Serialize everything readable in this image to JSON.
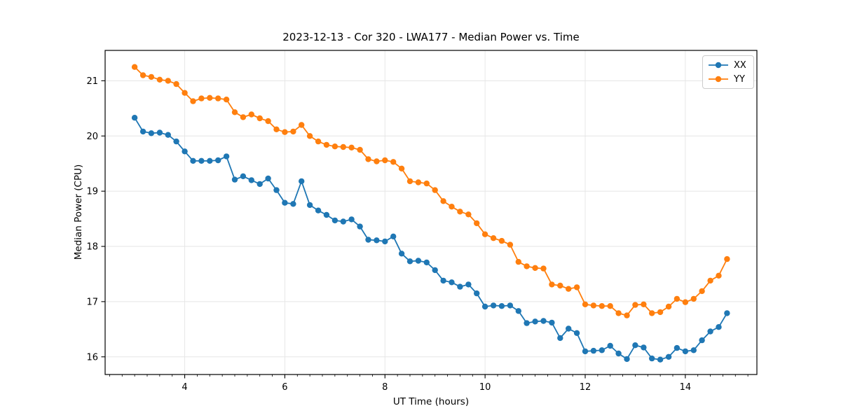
{
  "figure": {
    "background": "#ffffff"
  },
  "chart_data": {
    "type": "line",
    "title": "2023-12-13 - Cor 320 - LWA177 - Median Power vs. Time",
    "xlabel": "UT Time (hours)",
    "ylabel": "Median Power (CPU)",
    "grid": true,
    "legend_position": "upper right",
    "marker": "circle",
    "xlim": [
      2.41,
      15.43
    ],
    "ylim": [
      15.68,
      21.55
    ],
    "xticks": [
      4,
      6,
      8,
      10,
      12,
      14
    ],
    "x_minor_step": 0.25,
    "yticks": [
      16,
      17,
      18,
      19,
      20,
      21
    ],
    "x": [
      3.0,
      3.167,
      3.333,
      3.5,
      3.667,
      3.833,
      4.0,
      4.167,
      4.333,
      4.5,
      4.667,
      4.833,
      5.0,
      5.167,
      5.333,
      5.5,
      5.667,
      5.833,
      6.0,
      6.167,
      6.333,
      6.5,
      6.667,
      6.833,
      7.0,
      7.167,
      7.333,
      7.5,
      7.667,
      7.833,
      8.0,
      8.167,
      8.333,
      8.5,
      8.667,
      8.833,
      9.0,
      9.167,
      9.333,
      9.5,
      9.667,
      9.833,
      10.0,
      10.167,
      10.333,
      10.5,
      10.667,
      10.833,
      11.0,
      11.167,
      11.333,
      11.5,
      11.667,
      11.833,
      12.0,
      12.167,
      12.333,
      12.5,
      12.667,
      12.833,
      13.0,
      13.167,
      13.333,
      13.5,
      13.667,
      13.833,
      14.0,
      14.167,
      14.333,
      14.5,
      14.667,
      14.833
    ],
    "series": [
      {
        "name": "XX",
        "color": "#1f77b4",
        "values": [
          20.33,
          20.08,
          20.05,
          20.06,
          20.02,
          19.9,
          19.72,
          19.55,
          19.55,
          19.55,
          19.56,
          19.63,
          19.21,
          19.27,
          19.2,
          19.13,
          19.23,
          19.02,
          18.79,
          18.77,
          19.18,
          18.75,
          18.65,
          18.57,
          18.47,
          18.45,
          18.49,
          18.36,
          18.12,
          18.11,
          18.09,
          18.18,
          17.87,
          17.73,
          17.74,
          17.71,
          17.57,
          17.38,
          17.35,
          17.27,
          17.31,
          17.15,
          16.91,
          16.93,
          16.92,
          16.93,
          16.83,
          16.61,
          16.64,
          16.65,
          16.62,
          16.34,
          16.51,
          16.43,
          16.1,
          16.11,
          16.12,
          16.2,
          16.06,
          15.96,
          16.21,
          16.17,
          15.97,
          15.95,
          16.0,
          16.16,
          16.1,
          16.12,
          16.3,
          16.46,
          16.54,
          16.79
        ]
      },
      {
        "name": "YY",
        "color": "#ff7f0e",
        "values": [
          21.25,
          21.1,
          21.07,
          21.02,
          21.0,
          20.94,
          20.78,
          20.63,
          20.68,
          20.69,
          20.68,
          20.66,
          20.43,
          20.34,
          20.39,
          20.32,
          20.27,
          20.12,
          20.07,
          20.08,
          20.2,
          20.0,
          19.9,
          19.84,
          19.81,
          19.8,
          19.79,
          19.75,
          19.58,
          19.54,
          19.56,
          19.53,
          19.41,
          19.18,
          19.16,
          19.14,
          19.02,
          18.82,
          18.72,
          18.63,
          18.58,
          18.42,
          18.22,
          18.15,
          18.1,
          18.03,
          17.72,
          17.64,
          17.61,
          17.6,
          17.31,
          17.29,
          17.23,
          17.26,
          16.95,
          16.93,
          16.92,
          16.92,
          16.79,
          16.75,
          16.94,
          16.95,
          16.79,
          16.81,
          16.91,
          17.05,
          16.99,
          17.05,
          17.19,
          17.38,
          17.47,
          17.77
        ]
      }
    ],
    "style": {
      "spine_color": "#000000",
      "grid_color": "#e5e5e5",
      "tick_label_size": 13
    }
  }
}
